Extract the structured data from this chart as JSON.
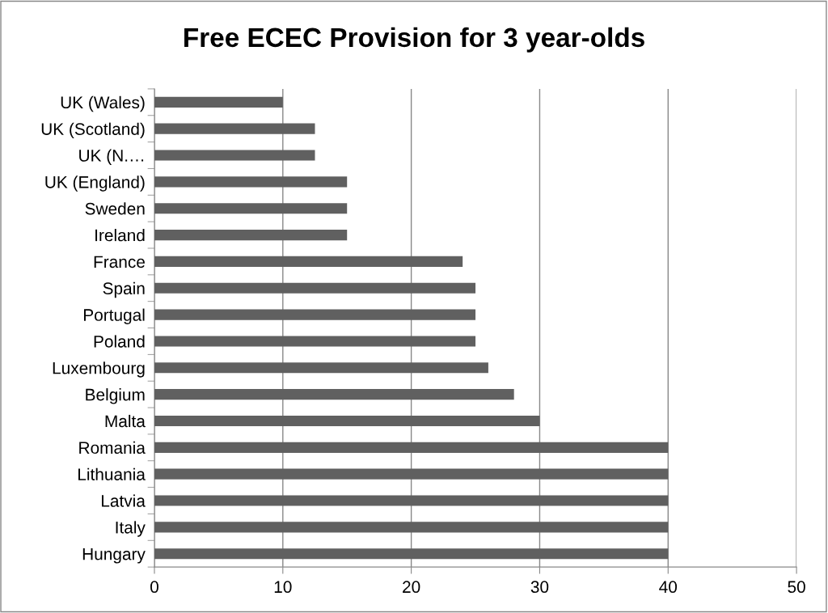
{
  "chart_data": {
    "type": "bar",
    "orientation": "horizontal",
    "title": "Free ECEC Provision for 3 year-olds",
    "categories": [
      "UK (Wales)",
      "UK (Scotland)",
      "UK (N.…",
      "UK (England)",
      "Sweden",
      "Ireland",
      "France",
      "Spain",
      "Portugal",
      "Poland",
      "Luxembourg",
      "Belgium",
      "Malta",
      "Romania",
      "Lithuania",
      "Latvia",
      "Italy",
      "Hungary"
    ],
    "values": [
      10,
      12.5,
      12.5,
      15,
      15,
      15,
      24,
      25,
      25,
      25,
      26,
      28,
      30,
      40,
      40,
      40,
      40,
      40
    ],
    "color": "#606060",
    "xlim": [
      0,
      50
    ],
    "xticks": [
      0,
      10,
      20,
      30,
      40,
      50
    ],
    "grid": "x",
    "legend": false
  }
}
